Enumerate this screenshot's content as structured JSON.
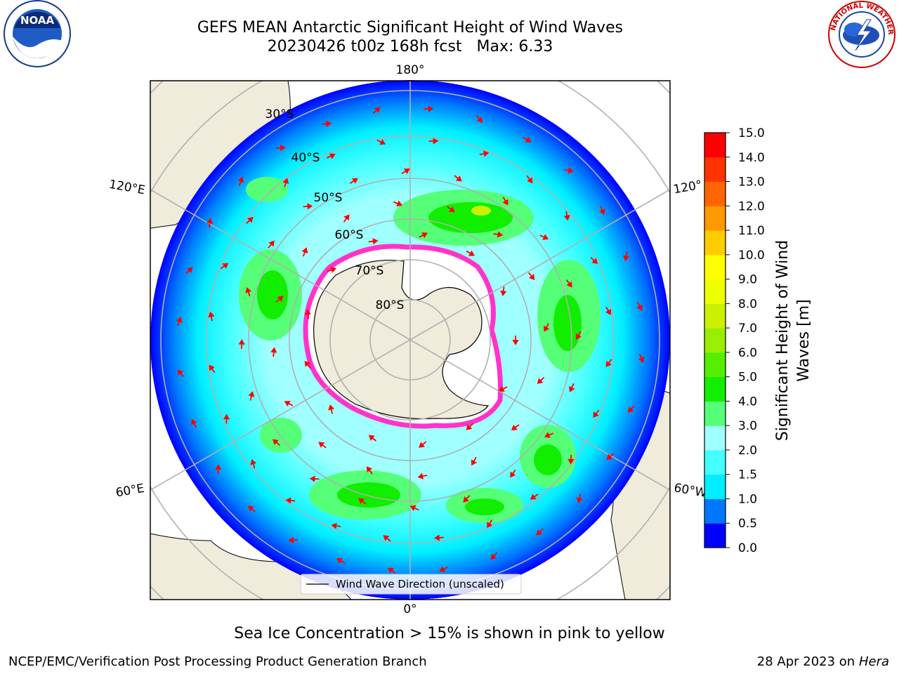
{
  "title_line1": "GEFS MEAN Antarctic Significant Height of Wind Waves",
  "title_line2": "20230426 t00z 168h fcst   Max: 6.33",
  "map": {
    "longitude_labels": [
      {
        "text": "180°",
        "lon": 180
      },
      {
        "text": "120°E",
        "lon": 120
      },
      {
        "text": "120°",
        "lon": -120
      },
      {
        "text": "60°E",
        "lon": 60
      },
      {
        "text": "60°W",
        "lon": -60
      },
      {
        "text": "0°",
        "lon": 0
      }
    ],
    "latitude_labels": [
      {
        "text": "30°S",
        "lat": -30
      },
      {
        "text": "40°S",
        "lat": -40
      },
      {
        "text": "50°S",
        "lat": -50
      },
      {
        "text": "60°S",
        "lat": -60
      },
      {
        "text": "70°S",
        "lat": -70
      },
      {
        "text": "80°S",
        "lat": -80
      }
    ],
    "legend_label": "Wind Wave Direction (unscaled)",
    "colors": {
      "land": "#efecdb",
      "ice_outline": "#ff33cc",
      "arrow": "#ff0000",
      "grid": "#b0b0b0"
    }
  },
  "colorbar": {
    "label": "Significant Height of Wind Waves [m]",
    "ticks": [
      "0.0",
      "0.5",
      "1.0",
      "1.5",
      "2.0",
      "3.0",
      "4.0",
      "5.0",
      "6.0",
      "7.0",
      "8.0",
      "9.0",
      "10.0",
      "11.0",
      "12.0",
      "13.0",
      "14.0",
      "15.0"
    ],
    "colors": [
      "#0000ff",
      "#0077ff",
      "#00eeff",
      "#44ffff",
      "#a0ffff",
      "#55ff77",
      "#11ee00",
      "#55ee00",
      "#99ee00",
      "#ccf000",
      "#eeff00",
      "#ffff00",
      "#ffcc00",
      "#ff9900",
      "#ff6600",
      "#ff3300",
      "#ff0000"
    ]
  },
  "logos": {
    "noaa": "NOAA",
    "nws": "NATIONAL WEATHER SERVICE"
  },
  "bottom_note": "Sea Ice Concentration > 15% is shown in pink to yellow",
  "footer_left": "NCEP/EMC/Verification Post Processing Product Generation Branch",
  "footer_right": {
    "date": "28 Apr 2023 on ",
    "host": "Hera"
  }
}
